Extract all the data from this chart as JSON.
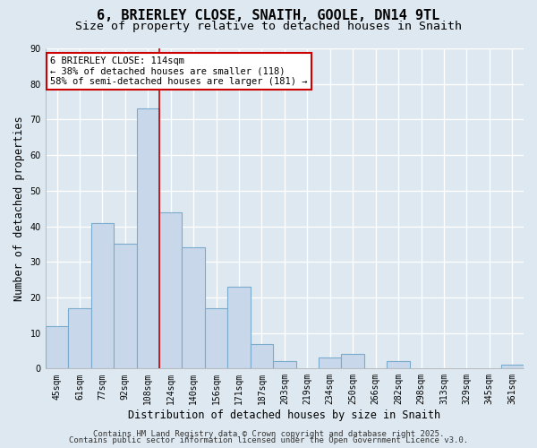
{
  "title": "6, BRIERLEY CLOSE, SNAITH, GOOLE, DN14 9TL",
  "subtitle": "Size of property relative to detached houses in Snaith",
  "xlabel": "Distribution of detached houses by size in Snaith",
  "ylabel": "Number of detached properties",
  "bar_labels": [
    "45sqm",
    "61sqm",
    "77sqm",
    "92sqm",
    "108sqm",
    "124sqm",
    "140sqm",
    "156sqm",
    "171sqm",
    "187sqm",
    "203sqm",
    "219sqm",
    "234sqm",
    "250sqm",
    "266sqm",
    "282sqm",
    "298sqm",
    "313sqm",
    "329sqm",
    "345sqm",
    "361sqm"
  ],
  "bar_values": [
    12,
    17,
    41,
    35,
    73,
    44,
    34,
    17,
    23,
    7,
    2,
    0,
    3,
    4,
    0,
    2,
    0,
    0,
    0,
    0,
    1
  ],
  "bar_color": "#c8d8ea",
  "bar_edge_color": "#7aabcc",
  "highlight_line_color": "#cc0000",
  "highlight_bar_index": 4,
  "annotation_text": "6 BRIERLEY CLOSE: 114sqm\n← 38% of detached houses are smaller (118)\n58% of semi-detached houses are larger (181) →",
  "annotation_box_color": "#ffffff",
  "annotation_box_edge_color": "#cc0000",
  "ylim": [
    0,
    90
  ],
  "yticks": [
    0,
    10,
    20,
    30,
    40,
    50,
    60,
    70,
    80,
    90
  ],
  "footer_line1": "Contains HM Land Registry data © Crown copyright and database right 2025.",
  "footer_line2": "Contains public sector information licensed under the Open Government Licence v3.0.",
  "background_color": "#dde8f0",
  "plot_bg_color": "#dde8f0",
  "grid_color": "#ffffff",
  "title_fontsize": 11,
  "subtitle_fontsize": 9.5,
  "axis_label_fontsize": 8.5,
  "tick_fontsize": 7,
  "annotation_fontsize": 7.5,
  "footer_fontsize": 6.5
}
